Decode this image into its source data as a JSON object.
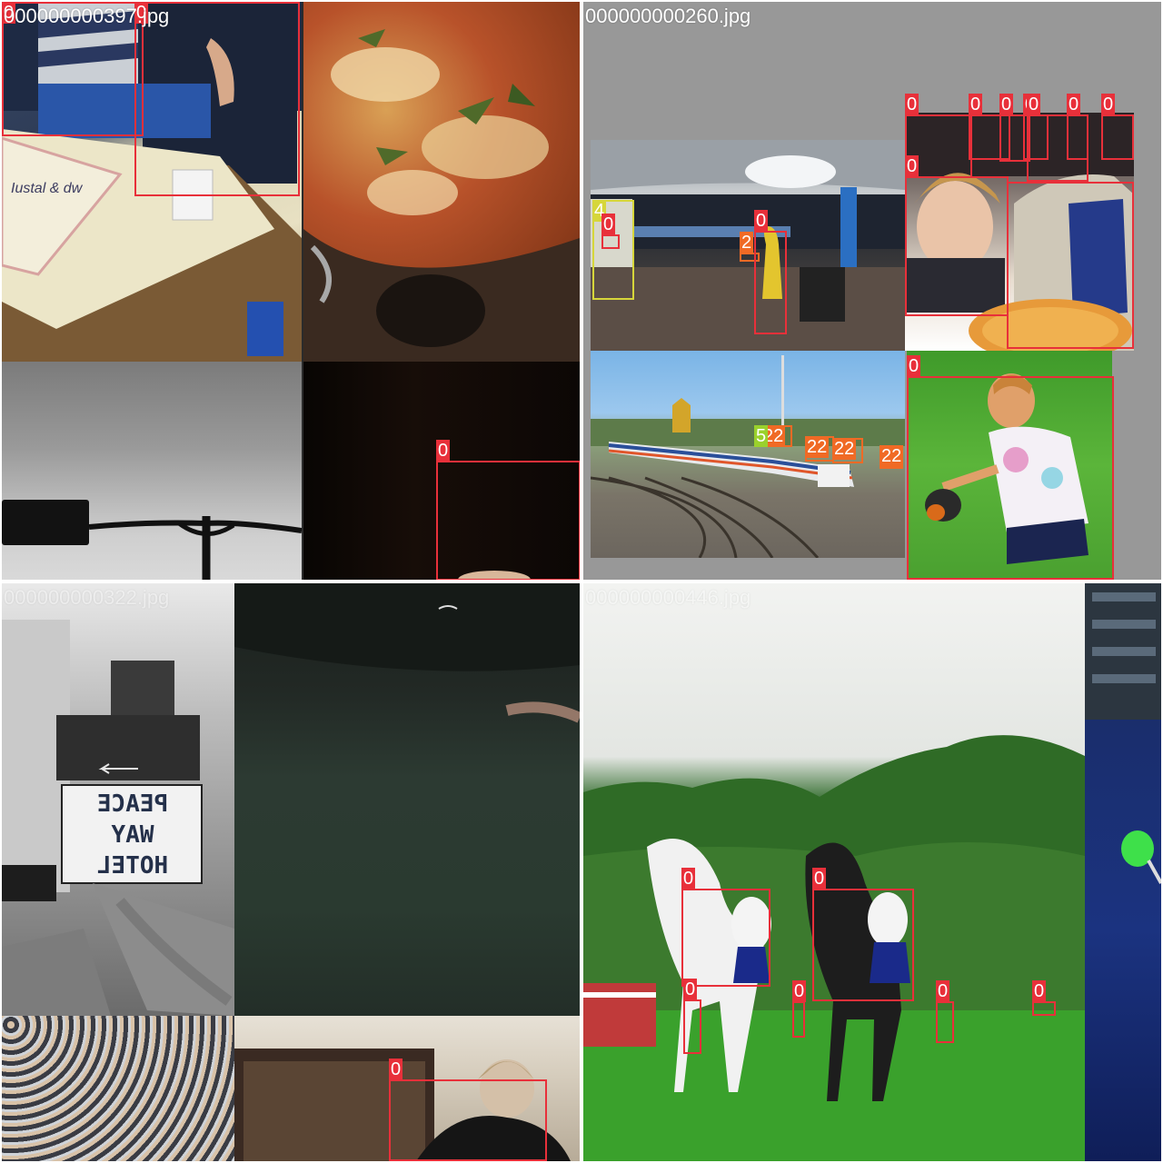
{
  "mosaic": {
    "quadrants": [
      {
        "filename": "000000000397.jpg"
      },
      {
        "filename": "000000000260.jpg"
      },
      {
        "filename": "000000000322.jpg"
      },
      {
        "filename": "000000000446.jpg"
      }
    ]
  },
  "labels": {
    "person": "0",
    "car": "2",
    "bus": "4",
    "train": "5",
    "car_pair": "22",
    "car_pair_b": "22"
  },
  "colors": {
    "person_box": "#e8303a",
    "car_box": "#f06a25",
    "bus_box": "#d6d63a",
    "train_box": "#9ad12c",
    "divider": "#ffffff"
  },
  "signage": {
    "hotel_line1": "PEACE",
    "hotel_line2": "WAY",
    "hotel_line3": "HOTEL"
  }
}
